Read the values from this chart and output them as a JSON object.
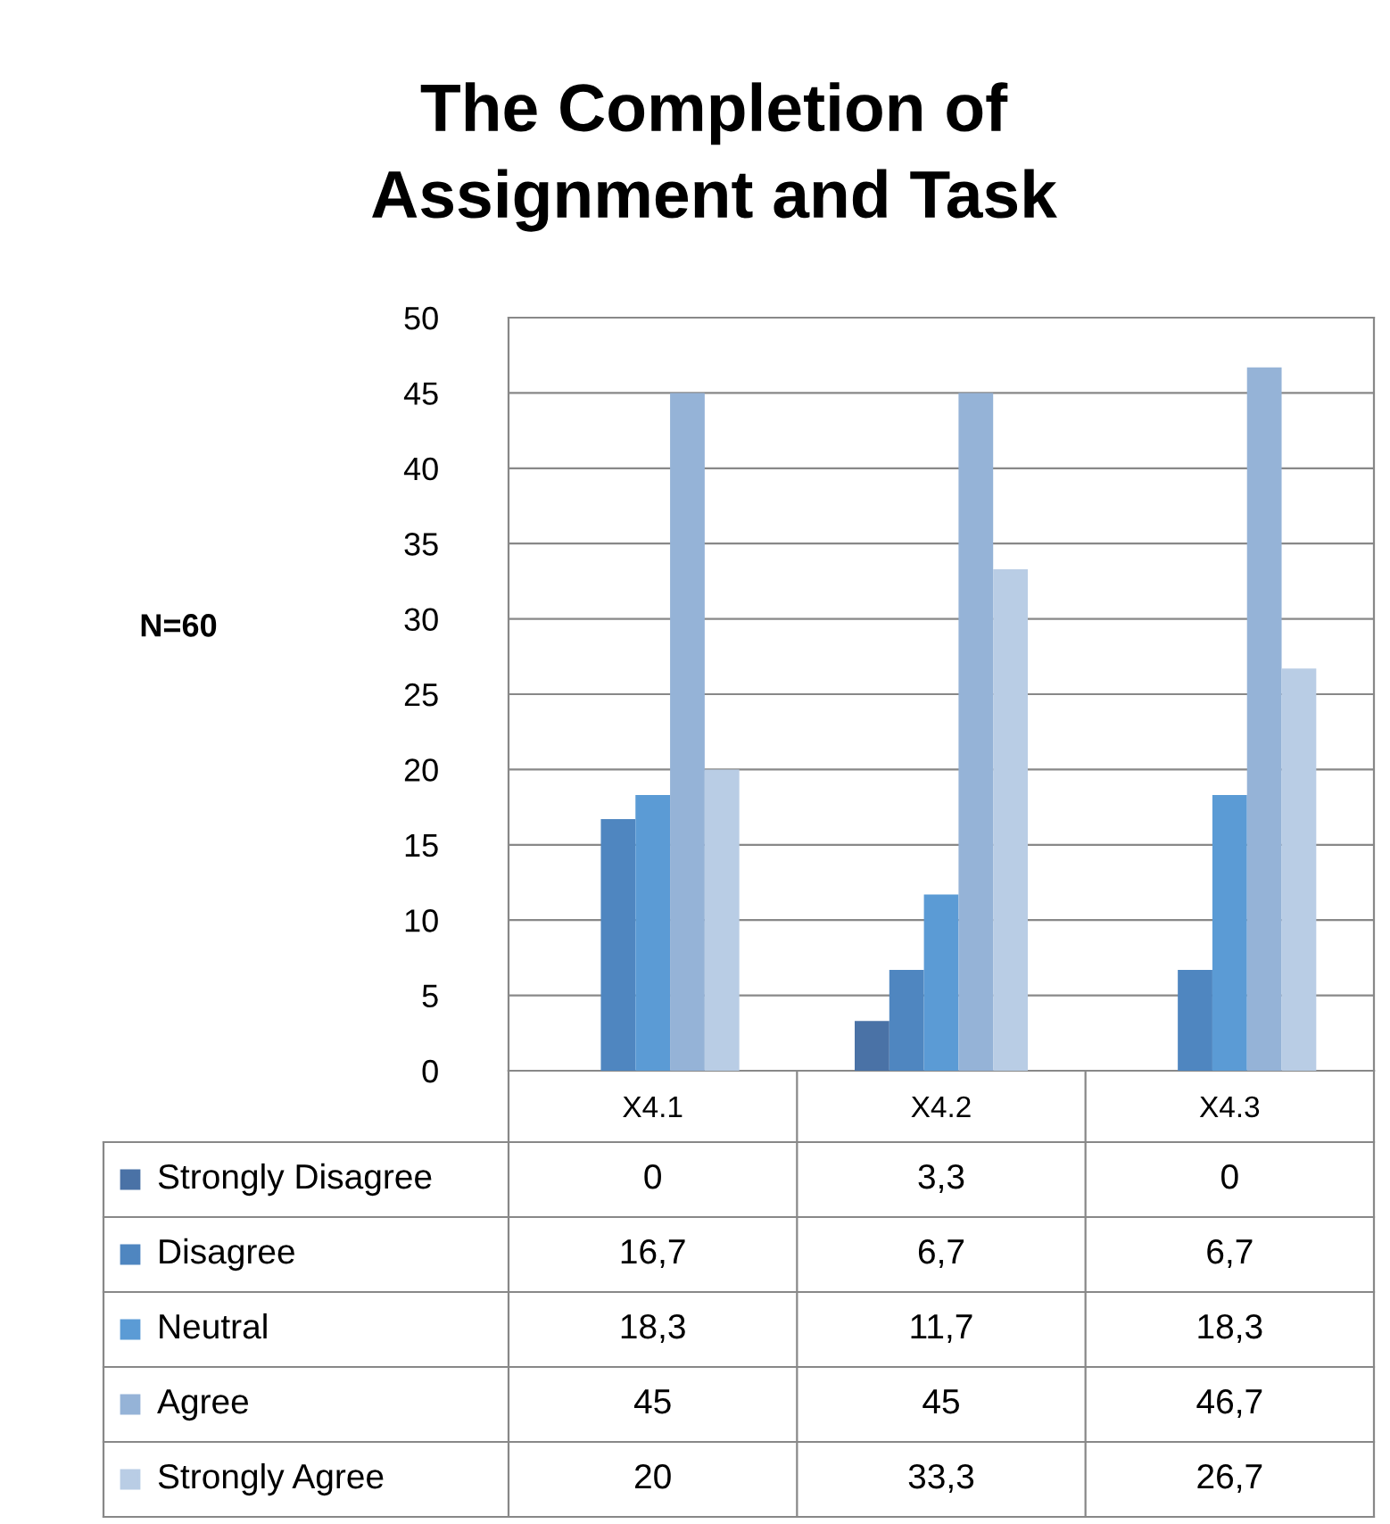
{
  "chart_data": {
    "type": "bar",
    "title": "The Completion of\nAssignment and Task",
    "annotations": [
      "N=60"
    ],
    "categories": [
      "X4.1",
      "X4.2",
      "X4.3"
    ],
    "series": [
      {
        "name": "Strongly Disagree",
        "color": "#4a72a6",
        "values": [
          0,
          3.3,
          0
        ],
        "value_labels": [
          "0",
          "3,3",
          "0"
        ]
      },
      {
        "name": "Disagree",
        "color": "#4f86c0",
        "values": [
          16.7,
          6.7,
          6.7
        ],
        "value_labels": [
          "16,7",
          "6,7",
          "6,7"
        ]
      },
      {
        "name": "Neutral",
        "color": "#5b9bd5",
        "values": [
          18.3,
          11.7,
          18.3
        ],
        "value_labels": [
          "18,3",
          "11,7",
          "18,3"
        ]
      },
      {
        "name": "Agree",
        "color": "#95b3d7",
        "values": [
          45,
          45,
          46.7
        ],
        "value_labels": [
          "45",
          "45",
          "46,7"
        ]
      },
      {
        "name": "Strongly Agree",
        "color": "#b9cde5",
        "values": [
          20,
          33.3,
          26.7
        ],
        "value_labels": [
          "20",
          "33,3",
          "26,7"
        ]
      }
    ],
    "ylim": [
      0,
      50
    ],
    "yticks": [
      0,
      5,
      10,
      15,
      20,
      25,
      30,
      35,
      40,
      45,
      50
    ],
    "grid": "y",
    "legend": "bottom"
  }
}
